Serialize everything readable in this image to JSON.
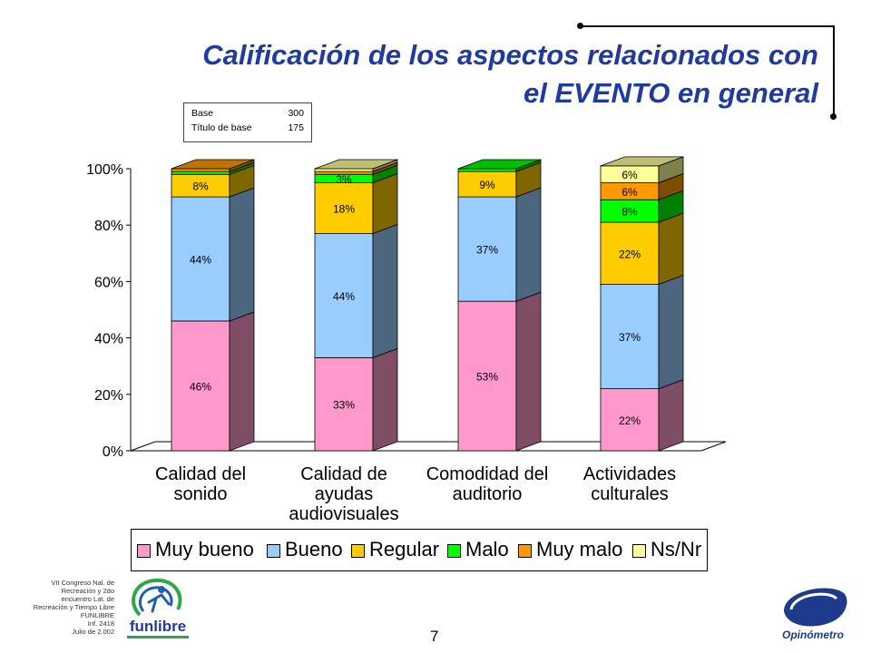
{
  "header": {
    "title_line1": "Calificación de los aspectos relacionados con",
    "title_line2": "el EVENTO en general"
  },
  "base_box": {
    "rows": [
      {
        "label": "Base",
        "value": "300"
      },
      {
        "label": "Título de base",
        "value": "175"
      }
    ]
  },
  "chart_data": {
    "type": "bar",
    "stacked": true,
    "three_d": true,
    "categories": [
      [
        "Calidad del",
        "sonido"
      ],
      [
        "Calidad de",
        "ayudas",
        "audiovisuales"
      ],
      [
        "Comodidad del",
        "auditorio"
      ],
      [
        "Actividades",
        "culturales"
      ]
    ],
    "series": [
      {
        "name": "Muy bueno",
        "color": "#ff99cc",
        "values": [
          46,
          33,
          53,
          22
        ]
      },
      {
        "name": "Bueno",
        "color": "#99ccff",
        "values": [
          44,
          44,
          37,
          37
        ]
      },
      {
        "name": "Regular",
        "color": "#ffcc00",
        "values": [
          8,
          18,
          9,
          22
        ]
      },
      {
        "name": "Malo",
        "color": "#00ff00",
        "values": [
          1,
          3,
          1,
          8
        ]
      },
      {
        "name": "Muy malo",
        "color": "#ff9900",
        "values": [
          1,
          1,
          0,
          6
        ]
      },
      {
        "name": "Ns/Nr",
        "color": "#ffff99",
        "values": [
          0,
          1,
          0,
          6
        ]
      }
    ],
    "data_labels": [
      [
        "46%",
        "44%",
        "8%",
        "",
        "",
        ""
      ],
      [
        "33%",
        "44%",
        "18%",
        "3%",
        "",
        ""
      ],
      [
        "53%",
        "37%",
        "9%",
        "",
        "",
        ""
      ],
      [
        "22%",
        "37%",
        "22%",
        "8%",
        "6%",
        "6%"
      ]
    ],
    "yticks": [
      "0%",
      "20%",
      "40%",
      "60%",
      "80%",
      "100%"
    ],
    "ylim": [
      0,
      100
    ],
    "grid": false,
    "legend_position": "bottom"
  },
  "legend": {
    "items": [
      {
        "label": "Muy bueno",
        "color": "#ff99cc"
      },
      {
        "label": "Bueno",
        "color": "#99ccff"
      },
      {
        "label": "Regular",
        "color": "#ffcc00"
      },
      {
        "label": "Malo",
        "color": "#00ff00"
      },
      {
        "label": "Muy malo",
        "color": "#ff9900"
      },
      {
        "label": "Ns/Nr",
        "color": "#ffff99"
      }
    ]
  },
  "footer": {
    "lines": [
      "VII Congreso Nal. de",
      "Recreación y 2do",
      "encuentro Lat. de",
      "Recreación y Tiempo Libre",
      "FUNLIBRE",
      "Inf. 2418",
      "Julio de 2.002"
    ],
    "page_number": "7",
    "left_logo_text": "funlibre",
    "right_logo_text": "Opinómetro"
  }
}
